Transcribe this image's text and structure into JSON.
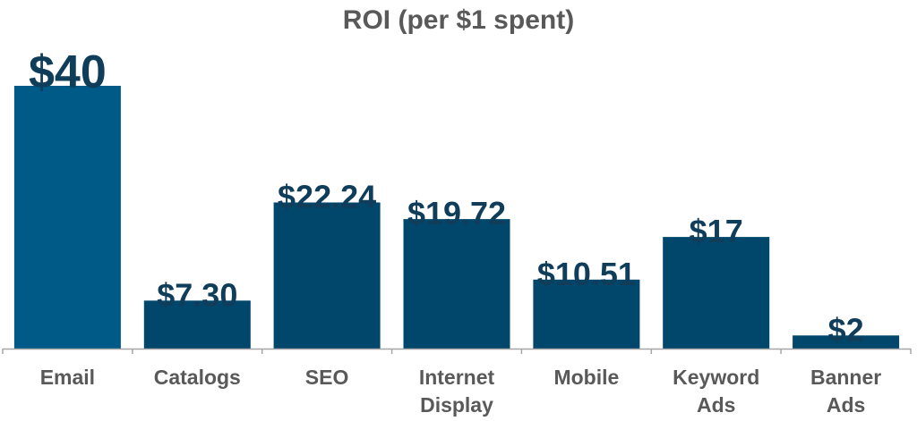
{
  "chart_data": {
    "type": "bar",
    "title": "ROI (per $1 spent)",
    "xlabel": "",
    "ylabel": "",
    "categories": [
      [
        "Email"
      ],
      [
        "Catalogs"
      ],
      [
        "SEO"
      ],
      [
        "Internet",
        "Display"
      ],
      [
        "Mobile"
      ],
      [
        "Keyword",
        "Ads"
      ],
      [
        "Banner",
        "Ads"
      ]
    ],
    "values": [
      40,
      7.3,
      22.24,
      19.72,
      10.51,
      17,
      2
    ],
    "data_labels": [
      "$40",
      "$7.30",
      "$22.24",
      "$19.72",
      "$10.51",
      "$17",
      "$2"
    ],
    "ylim": [
      0,
      40
    ],
    "grid": false,
    "legend": "none",
    "colors": {
      "highlight_bar": "#005a87",
      "bar": "#00476b",
      "label_text": "#0f3d5a",
      "axis_text": "#595959",
      "axis_line": "#a6a6a6"
    }
  }
}
